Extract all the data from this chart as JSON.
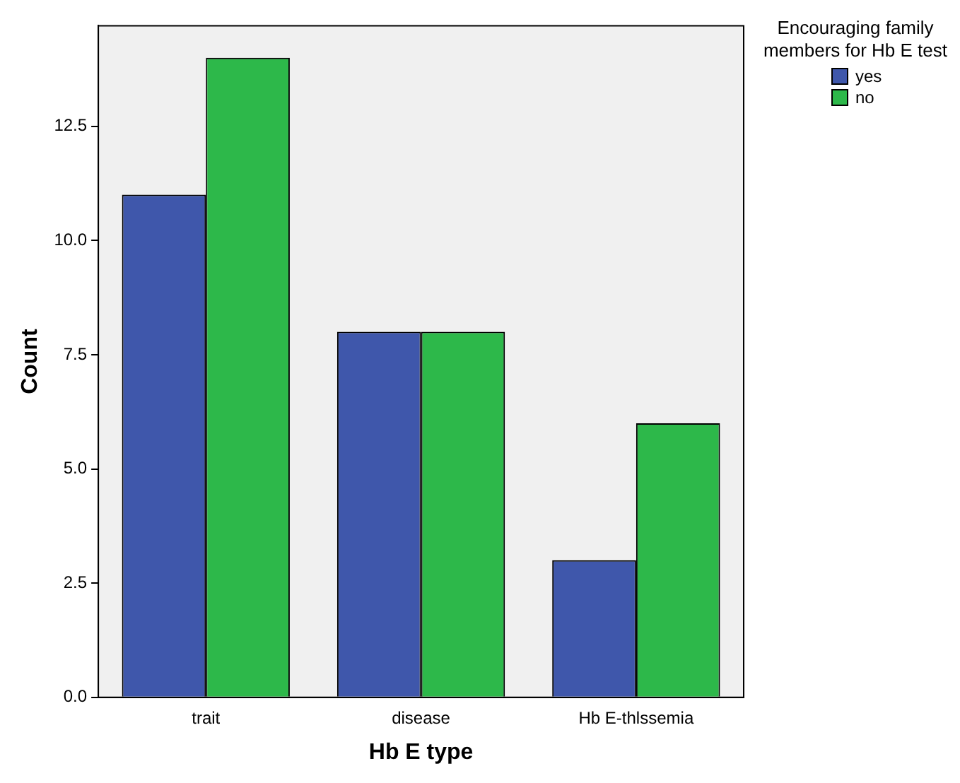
{
  "chart_data": {
    "type": "bar",
    "xlabel": "Hb E type",
    "ylabel": "Count",
    "legend_title": "Encouraging family members for Hb E test",
    "categories": [
      "trait",
      "disease",
      "Hb E-thlssemia"
    ],
    "series": [
      {
        "name": "yes",
        "color": "#3f57ab",
        "values": [
          11,
          8,
          3
        ]
      },
      {
        "name": "no",
        "color": "#2db84a",
        "values": [
          14,
          8,
          6
        ]
      }
    ],
    "ylim": [
      0,
      14.7
    ],
    "yticks": [
      {
        "value": 0,
        "label": "0.0"
      },
      2.5,
      {
        "value": 5,
        "label": "5.0"
      },
      7.5,
      {
        "value": 10,
        "label": "10.0"
      },
      12.5
    ],
    "grid": false,
    "legend": "top right"
  }
}
